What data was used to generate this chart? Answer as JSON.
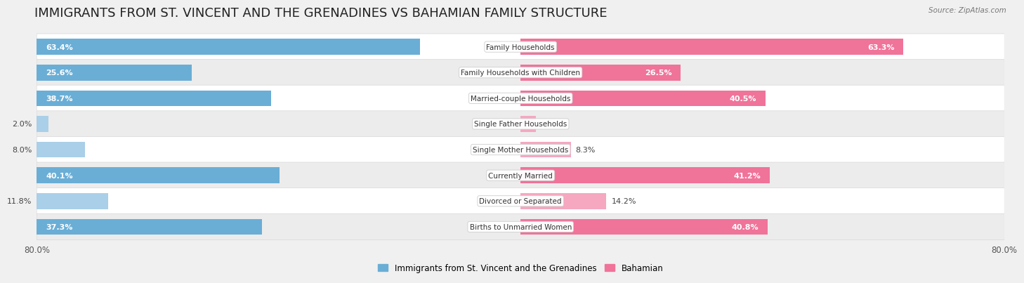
{
  "title": "IMMIGRANTS FROM ST. VINCENT AND THE GRENADINES VS BAHAMIAN FAMILY STRUCTURE",
  "source": "Source: ZipAtlas.com",
  "categories": [
    "Family Households",
    "Family Households with Children",
    "Married-couple Households",
    "Single Father Households",
    "Single Mother Households",
    "Currently Married",
    "Divorced or Separated",
    "Births to Unmarried Women"
  ],
  "left_values": [
    63.4,
    25.6,
    38.7,
    2.0,
    8.0,
    40.1,
    11.8,
    37.3
  ],
  "right_values": [
    63.3,
    26.5,
    40.5,
    2.5,
    8.3,
    41.2,
    14.2,
    40.8
  ],
  "max_val": 80.0,
  "left_color_large": "#6aaed6",
  "left_color_small": "#aacfe8",
  "right_color_large": "#f0739a",
  "right_color_small": "#f5a8c0",
  "left_label": "Immigrants from St. Vincent and the Grenadines",
  "right_label": "Bahamian",
  "background_color": "#f0f0f0",
  "row_colors": [
    "#ffffff",
    "#ececec"
  ],
  "title_fontsize": 13,
  "bar_height": 0.62,
  "label_threshold": 15.0
}
